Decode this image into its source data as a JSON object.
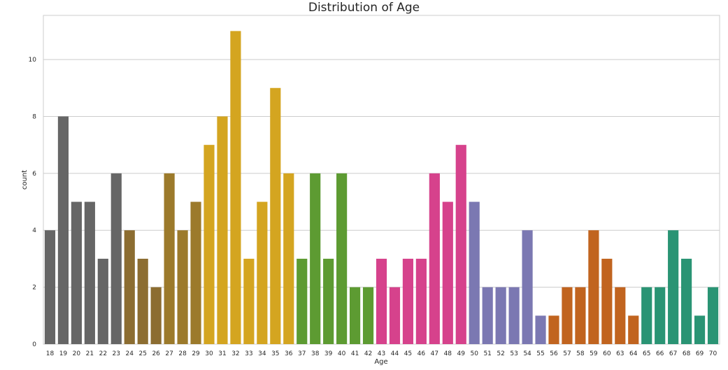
{
  "chart_data": {
    "type": "bar",
    "title": "Distribution of Age",
    "xlabel": "Age",
    "ylabel": "count",
    "ylim": [
      0,
      11.55
    ],
    "yticks": [
      0,
      2,
      4,
      6,
      8,
      10
    ],
    "grid": true,
    "categories": [
      "18",
      "19",
      "20",
      "21",
      "22",
      "23",
      "24",
      "25",
      "26",
      "27",
      "28",
      "29",
      "30",
      "31",
      "32",
      "33",
      "34",
      "35",
      "36",
      "37",
      "38",
      "39",
      "40",
      "41",
      "42",
      "43",
      "44",
      "45",
      "46",
      "47",
      "48",
      "49",
      "50",
      "51",
      "52",
      "53",
      "54",
      "55",
      "56",
      "57",
      "58",
      "59",
      "60",
      "63",
      "64",
      "65",
      "66",
      "67",
      "68",
      "69",
      "70"
    ],
    "values": [
      4,
      8,
      5,
      5,
      3,
      6,
      4,
      3,
      2,
      6,
      4,
      5,
      7,
      8,
      11,
      3,
      5,
      9,
      6,
      3,
      6,
      3,
      6,
      2,
      2,
      3,
      2,
      3,
      3,
      6,
      5,
      7,
      5,
      2,
      2,
      2,
      4,
      1,
      1,
      2,
      2,
      4,
      3,
      2,
      1,
      2,
      2,
      4,
      3,
      1,
      2
    ],
    "colors": [
      "#666666",
      "#666666",
      "#666666",
      "#666666",
      "#666666",
      "#666666",
      "#8c6d31",
      "#8c6d31",
      "#8c6d31",
      "#9c7a2b",
      "#9c7a2b",
      "#9c7a2b",
      "#d4a520",
      "#d4a520",
      "#d4a520",
      "#d4a520",
      "#d4a520",
      "#d4a520",
      "#d4a520",
      "#5d9b32",
      "#5d9b32",
      "#5d9b32",
      "#5d9b32",
      "#5d9b32",
      "#5d9b32",
      "#d6428c",
      "#d6428c",
      "#d6428c",
      "#d6428c",
      "#d6428c",
      "#d6428c",
      "#d6428c",
      "#7b78b2",
      "#7b78b2",
      "#7b78b2",
      "#7b78b2",
      "#7b78b2",
      "#7b78b2",
      "#c1641f",
      "#c1641f",
      "#c1641f",
      "#c1641f",
      "#c1641f",
      "#c1641f",
      "#c1641f",
      "#2a9474",
      "#2a9474",
      "#2a9474",
      "#2a9474",
      "#2a9474",
      "#2a9474"
    ]
  }
}
